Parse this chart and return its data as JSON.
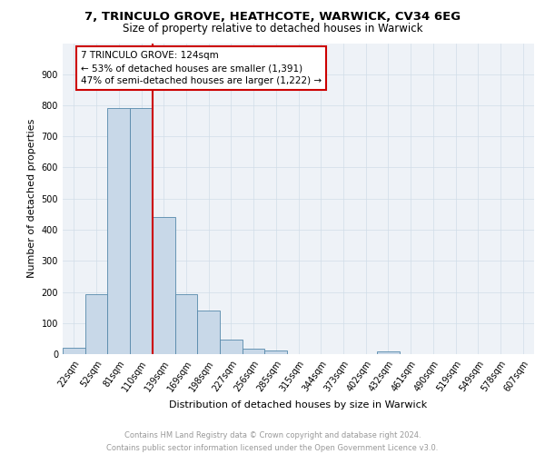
{
  "title1": "7, TRINCULO GROVE, HEATHCOTE, WARWICK, CV34 6EG",
  "title2": "Size of property relative to detached houses in Warwick",
  "xlabel": "Distribution of detached houses by size in Warwick",
  "ylabel": "Number of detached properties",
  "footnote": "Contains HM Land Registry data © Crown copyright and database right 2024.\nContains public sector information licensed under the Open Government Licence v3.0.",
  "bin_labels": [
    "22sqm",
    "52sqm",
    "81sqm",
    "110sqm",
    "139sqm",
    "169sqm",
    "198sqm",
    "227sqm",
    "256sqm",
    "285sqm",
    "315sqm",
    "344sqm",
    "373sqm",
    "402sqm",
    "432sqm",
    "461sqm",
    "490sqm",
    "519sqm",
    "549sqm",
    "578sqm",
    "607sqm"
  ],
  "bar_heights": [
    20,
    193,
    790,
    790,
    442,
    193,
    140,
    48,
    18,
    12,
    0,
    0,
    0,
    0,
    10,
    0,
    0,
    0,
    0,
    0,
    0
  ],
  "bar_color": "#c8d8e8",
  "bar_edge_color": "#5588aa",
  "vline_x": 3.5,
  "vline_color": "#cc0000",
  "annotation_text": "7 TRINCULO GROVE: 124sqm\n← 53% of detached houses are smaller (1,391)\n47% of semi-detached houses are larger (1,222) →",
  "annotation_box_color": "#ffffff",
  "annotation_box_edge": "#cc0000",
  "ylim": [
    0,
    1000
  ],
  "yticks": [
    0,
    100,
    200,
    300,
    400,
    500,
    600,
    700,
    800,
    900,
    1000
  ],
  "grid_color": "#d0dde8",
  "background_color": "#eef2f7",
  "title1_fontsize": 9.5,
  "title2_fontsize": 8.5,
  "xlabel_fontsize": 8,
  "ylabel_fontsize": 8,
  "tick_fontsize": 7,
  "annot_fontsize": 7.5
}
